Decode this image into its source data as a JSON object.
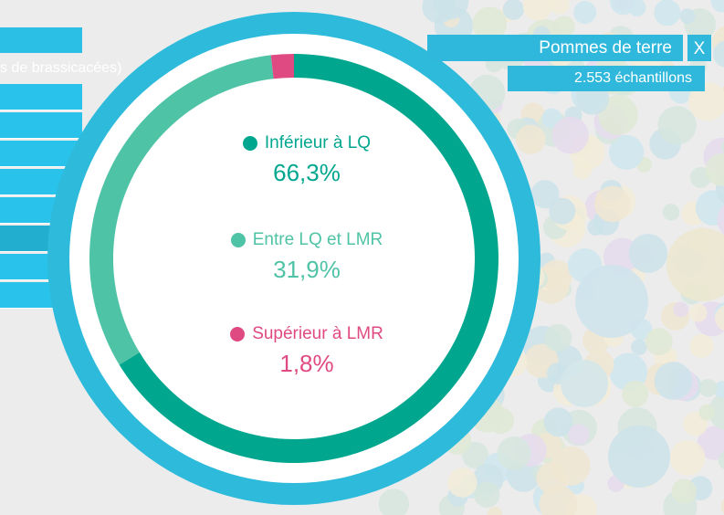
{
  "header": {
    "title": "Pommes de terre",
    "close_label": "X",
    "samples": "2.553 échantillons"
  },
  "sidebar": {
    "partial_label": "s de brassicacées)"
  },
  "colors": {
    "ring": "#2ebadb",
    "below_lq": "#00a78e",
    "between": "#4fc3a6",
    "above_lmr": "#e04a82"
  },
  "chart_data": {
    "type": "pie",
    "variant": "donut",
    "labels": [
      "Inférieur à LQ",
      "Entre LQ et LMR",
      "Supérieur à LMR"
    ],
    "values": [
      66.3,
      31.9,
      1.8
    ],
    "display_values": [
      "66,3%",
      "31,9%",
      "1,8%"
    ],
    "colors": [
      "#00a78e",
      "#4fc3a6",
      "#e04a82"
    ],
    "legend": {
      "items": [
        {
          "label": "Inférieur à LQ",
          "value": "66,3%",
          "color": "#00a78e"
        },
        {
          "label": "Entre LQ et LMR",
          "value": "31,9%",
          "color": "#4fc3a6"
        },
        {
          "label": "Supérieur à LMR",
          "value": "1,8%",
          "color": "#e04a82"
        }
      ]
    }
  }
}
